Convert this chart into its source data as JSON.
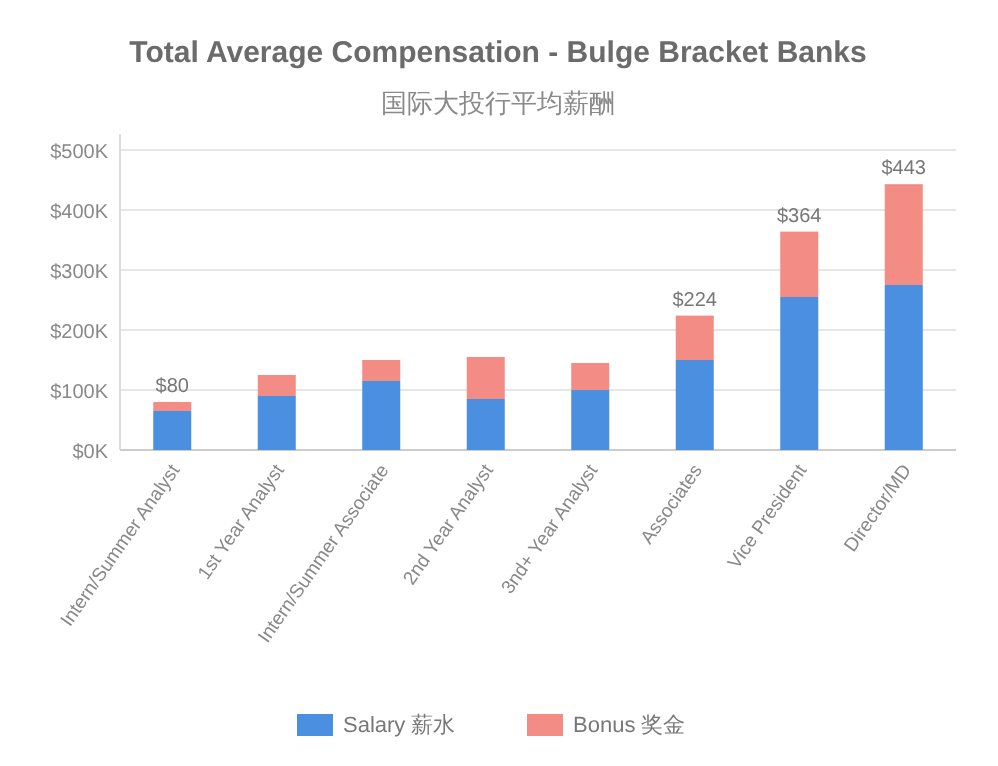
{
  "chart_data": {
    "type": "bar",
    "title": "Total Average Compensation - Bulge Bracket Banks",
    "subtitle": "国际大投行平均薪酬",
    "categories": [
      "Intern/Summer Analyst",
      "1st Year Analyst",
      "Intern/Summer Associate",
      "2nd Year Analyst",
      "3nd+ Year Analyst",
      "Associates",
      "Vice President",
      "Director/MD"
    ],
    "stacked": true,
    "series": [
      {
        "name": "Salary 薪水",
        "color": "#4a8fe0",
        "values": [
          65,
          90,
          115,
          85,
          100,
          150,
          255,
          275
        ]
      },
      {
        "name": "Bonus 奖金",
        "color": "#f28c84",
        "values": [
          15,
          35,
          35,
          70,
          45,
          74,
          109,
          168
        ]
      }
    ],
    "totals": [
      "$80",
      null,
      null,
      null,
      null,
      "$224",
      "$364",
      "$443"
    ],
    "ylim": [
      0,
      500
    ],
    "yticks": [
      {
        "value": 0,
        "label": "$0K"
      },
      {
        "value": 100,
        "label": "$100K"
      },
      {
        "value": 200,
        "label": "$200K"
      },
      {
        "value": 300,
        "label": "$300K"
      },
      {
        "value": 400,
        "label": "$400K"
      },
      {
        "value": 500,
        "label": "$500K"
      }
    ],
    "grid": "y",
    "legend": "bottom"
  }
}
